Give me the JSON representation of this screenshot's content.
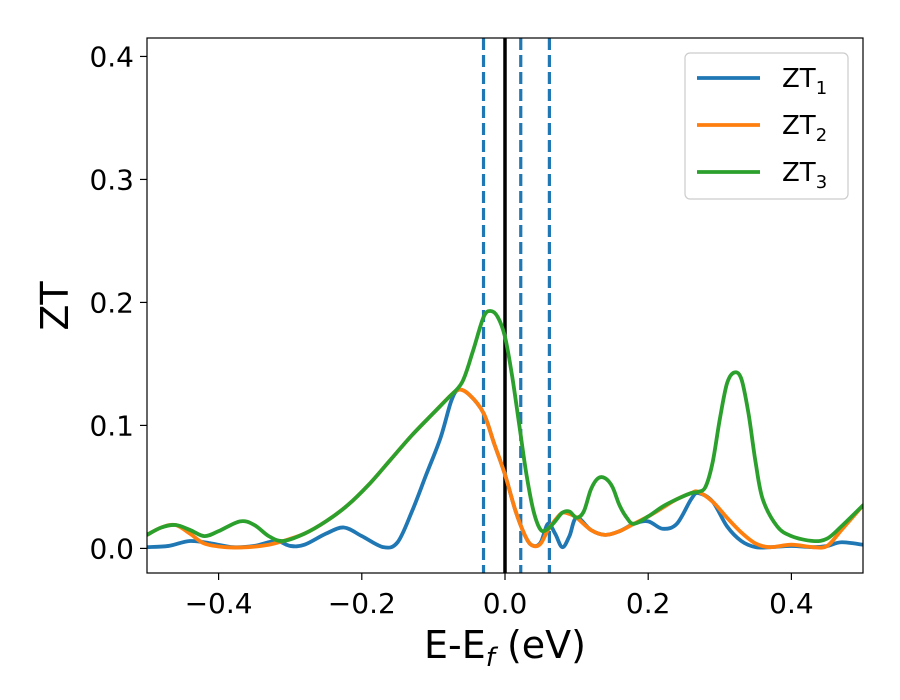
{
  "chart_data": {
    "type": "line",
    "title": "",
    "xlabel": {
      "main": "E-E",
      "sub": "f",
      "suffix": " (eV)"
    },
    "ylabel": "ZT",
    "xlim": [
      -0.5,
      0.5
    ],
    "ylim": [
      -0.02,
      0.415
    ],
    "x_ticks": [
      -0.4,
      -0.2,
      0.0,
      0.2,
      0.4
    ],
    "x_tick_labels": [
      "−0.4",
      "−0.2",
      "0.0",
      "0.2",
      "0.4"
    ],
    "y_ticks": [
      0.0,
      0.1,
      0.2,
      0.3,
      0.4
    ],
    "y_tick_labels": [
      "0.0",
      "0.1",
      "0.2",
      "0.3",
      "0.4"
    ],
    "grid": false,
    "legend_position": "top-right",
    "vertical_lines": [
      {
        "x": 0.0,
        "style": "solid",
        "color": "#000000"
      },
      {
        "x": -0.03,
        "style": "dashed",
        "color": "#1f77b4"
      },
      {
        "x": 0.022,
        "style": "dashed",
        "color": "#1f77b4"
      },
      {
        "x": 0.062,
        "style": "dashed",
        "color": "#1f77b4"
      }
    ],
    "series": [
      {
        "name": "ZT_1",
        "label_main": "ZT",
        "label_sub": "1",
        "color": "#1f77b4",
        "points": [
          [
            -0.5,
            0.001
          ],
          [
            -0.47,
            0.002
          ],
          [
            -0.44,
            0.006
          ],
          [
            -0.41,
            0.004
          ],
          [
            -0.38,
            0.001
          ],
          [
            -0.35,
            0.002
          ],
          [
            -0.32,
            0.006
          ],
          [
            -0.3,
            0.002
          ],
          [
            -0.28,
            0.003
          ],
          [
            -0.25,
            0.012
          ],
          [
            -0.225,
            0.017
          ],
          [
            -0.2,
            0.01
          ],
          [
            -0.17,
            0.001
          ],
          [
            -0.15,
            0.005
          ],
          [
            -0.13,
            0.03
          ],
          [
            -0.11,
            0.06
          ],
          [
            -0.09,
            0.09
          ],
          [
            -0.075,
            0.12
          ],
          [
            -0.065,
            0.129
          ],
          [
            -0.05,
            0.125
          ],
          [
            -0.03,
            0.11
          ],
          [
            -0.015,
            0.085
          ],
          [
            0.0,
            0.06
          ],
          [
            0.015,
            0.03
          ],
          [
            0.03,
            0.008
          ],
          [
            0.04,
            0.002
          ],
          [
            0.05,
            0.005
          ],
          [
            0.06,
            0.02
          ],
          [
            0.07,
            0.012
          ],
          [
            0.08,
            0.001
          ],
          [
            0.09,
            0.01
          ],
          [
            0.1,
            0.025
          ],
          [
            0.12,
            0.015
          ],
          [
            0.14,
            0.011
          ],
          [
            0.16,
            0.014
          ],
          [
            0.18,
            0.02
          ],
          [
            0.2,
            0.022
          ],
          [
            0.22,
            0.016
          ],
          [
            0.24,
            0.02
          ],
          [
            0.26,
            0.04
          ],
          [
            0.27,
            0.045
          ],
          [
            0.29,
            0.038
          ],
          [
            0.31,
            0.018
          ],
          [
            0.33,
            0.006
          ],
          [
            0.35,
            0.001
          ],
          [
            0.37,
            0.001
          ],
          [
            0.4,
            0.002
          ],
          [
            0.43,
            0.001
          ],
          [
            0.45,
            0.002
          ],
          [
            0.47,
            0.005
          ],
          [
            0.5,
            0.003
          ]
        ]
      },
      {
        "name": "ZT_2",
        "label_main": "ZT",
        "label_sub": "2",
        "color": "#ff7f0e",
        "points": [
          [
            -0.5,
            0.011
          ],
          [
            -0.48,
            0.017
          ],
          [
            -0.46,
            0.019
          ],
          [
            -0.44,
            0.012
          ],
          [
            -0.42,
            0.004
          ],
          [
            -0.39,
            0.001
          ],
          [
            -0.36,
            0.001
          ],
          [
            -0.33,
            0.003
          ],
          [
            -0.31,
            0.006
          ],
          [
            -0.28,
            0.012
          ],
          [
            -0.25,
            0.022
          ],
          [
            -0.22,
            0.035
          ],
          [
            -0.19,
            0.052
          ],
          [
            -0.16,
            0.072
          ],
          [
            -0.13,
            0.092
          ],
          [
            -0.1,
            0.11
          ],
          [
            -0.08,
            0.122
          ],
          [
            -0.065,
            0.129
          ],
          [
            -0.05,
            0.125
          ],
          [
            -0.03,
            0.11
          ],
          [
            -0.015,
            0.085
          ],
          [
            0.0,
            0.06
          ],
          [
            0.015,
            0.03
          ],
          [
            0.03,
            0.008
          ],
          [
            0.04,
            0.002
          ],
          [
            0.05,
            0.004
          ],
          [
            0.06,
            0.015
          ],
          [
            0.07,
            0.023
          ],
          [
            0.08,
            0.029
          ],
          [
            0.09,
            0.028
          ],
          [
            0.1,
            0.025
          ],
          [
            0.12,
            0.015
          ],
          [
            0.14,
            0.011
          ],
          [
            0.16,
            0.014
          ],
          [
            0.18,
            0.02
          ],
          [
            0.2,
            0.026
          ],
          [
            0.22,
            0.033
          ],
          [
            0.24,
            0.04
          ],
          [
            0.26,
            0.045
          ],
          [
            0.27,
            0.046
          ],
          [
            0.29,
            0.038
          ],
          [
            0.31,
            0.025
          ],
          [
            0.33,
            0.013
          ],
          [
            0.35,
            0.004
          ],
          [
            0.37,
            0.001
          ],
          [
            0.4,
            0.003
          ],
          [
            0.43,
            0.001
          ],
          [
            0.45,
            0.002
          ],
          [
            0.47,
            0.015
          ],
          [
            0.5,
            0.035
          ]
        ]
      },
      {
        "name": "ZT_3",
        "label_main": "ZT",
        "label_sub": "3",
        "color": "#2ca02c",
        "points": [
          [
            -0.5,
            0.011
          ],
          [
            -0.48,
            0.017
          ],
          [
            -0.46,
            0.019
          ],
          [
            -0.44,
            0.015
          ],
          [
            -0.42,
            0.01
          ],
          [
            -0.4,
            0.014
          ],
          [
            -0.37,
            0.022
          ],
          [
            -0.35,
            0.019
          ],
          [
            -0.33,
            0.01
          ],
          [
            -0.31,
            0.006
          ],
          [
            -0.28,
            0.012
          ],
          [
            -0.25,
            0.022
          ],
          [
            -0.22,
            0.035
          ],
          [
            -0.19,
            0.052
          ],
          [
            -0.16,
            0.072
          ],
          [
            -0.13,
            0.092
          ],
          [
            -0.1,
            0.11
          ],
          [
            -0.08,
            0.122
          ],
          [
            -0.06,
            0.135
          ],
          [
            -0.045,
            0.16
          ],
          [
            -0.03,
            0.188
          ],
          [
            -0.02,
            0.193
          ],
          [
            -0.01,
            0.188
          ],
          [
            0.0,
            0.172
          ],
          [
            0.01,
            0.14
          ],
          [
            0.02,
            0.1
          ],
          [
            0.03,
            0.06
          ],
          [
            0.04,
            0.03
          ],
          [
            0.05,
            0.015
          ],
          [
            0.06,
            0.016
          ],
          [
            0.07,
            0.022
          ],
          [
            0.08,
            0.029
          ],
          [
            0.09,
            0.03
          ],
          [
            0.1,
            0.025
          ],
          [
            0.11,
            0.03
          ],
          [
            0.12,
            0.048
          ],
          [
            0.13,
            0.057
          ],
          [
            0.14,
            0.057
          ],
          [
            0.15,
            0.05
          ],
          [
            0.16,
            0.035
          ],
          [
            0.17,
            0.025
          ],
          [
            0.18,
            0.02
          ],
          [
            0.2,
            0.026
          ],
          [
            0.22,
            0.034
          ],
          [
            0.24,
            0.04
          ],
          [
            0.26,
            0.045
          ],
          [
            0.27,
            0.046
          ],
          [
            0.28,
            0.05
          ],
          [
            0.29,
            0.07
          ],
          [
            0.3,
            0.105
          ],
          [
            0.31,
            0.134
          ],
          [
            0.32,
            0.143
          ],
          [
            0.33,
            0.138
          ],
          [
            0.34,
            0.11
          ],
          [
            0.35,
            0.07
          ],
          [
            0.36,
            0.04
          ],
          [
            0.38,
            0.018
          ],
          [
            0.4,
            0.01
          ],
          [
            0.43,
            0.006
          ],
          [
            0.45,
            0.008
          ],
          [
            0.47,
            0.018
          ],
          [
            0.5,
            0.035
          ]
        ]
      }
    ]
  }
}
